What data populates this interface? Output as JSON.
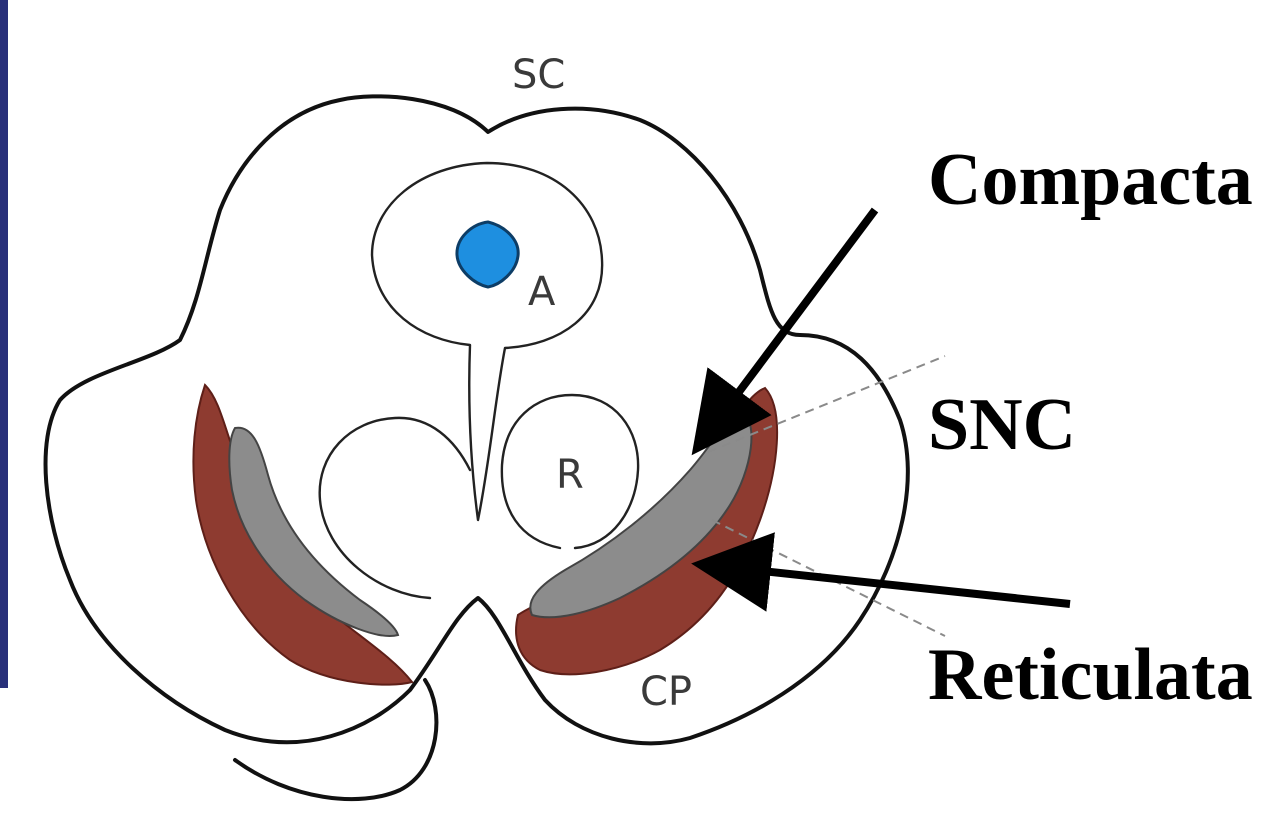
{
  "diagram_labels": {
    "sc": "SC",
    "a": "A",
    "r": "R",
    "cp": "CP"
  },
  "annotations": {
    "compacta": "Compacta",
    "snc": "SNC",
    "reticulata": "Reticulata"
  },
  "colors": {
    "reticulata_region": "#8e3b30",
    "compacta_region": "#8c8c8c",
    "aqueduct": "#1e8fe0",
    "left_bar": "#28307a"
  }
}
